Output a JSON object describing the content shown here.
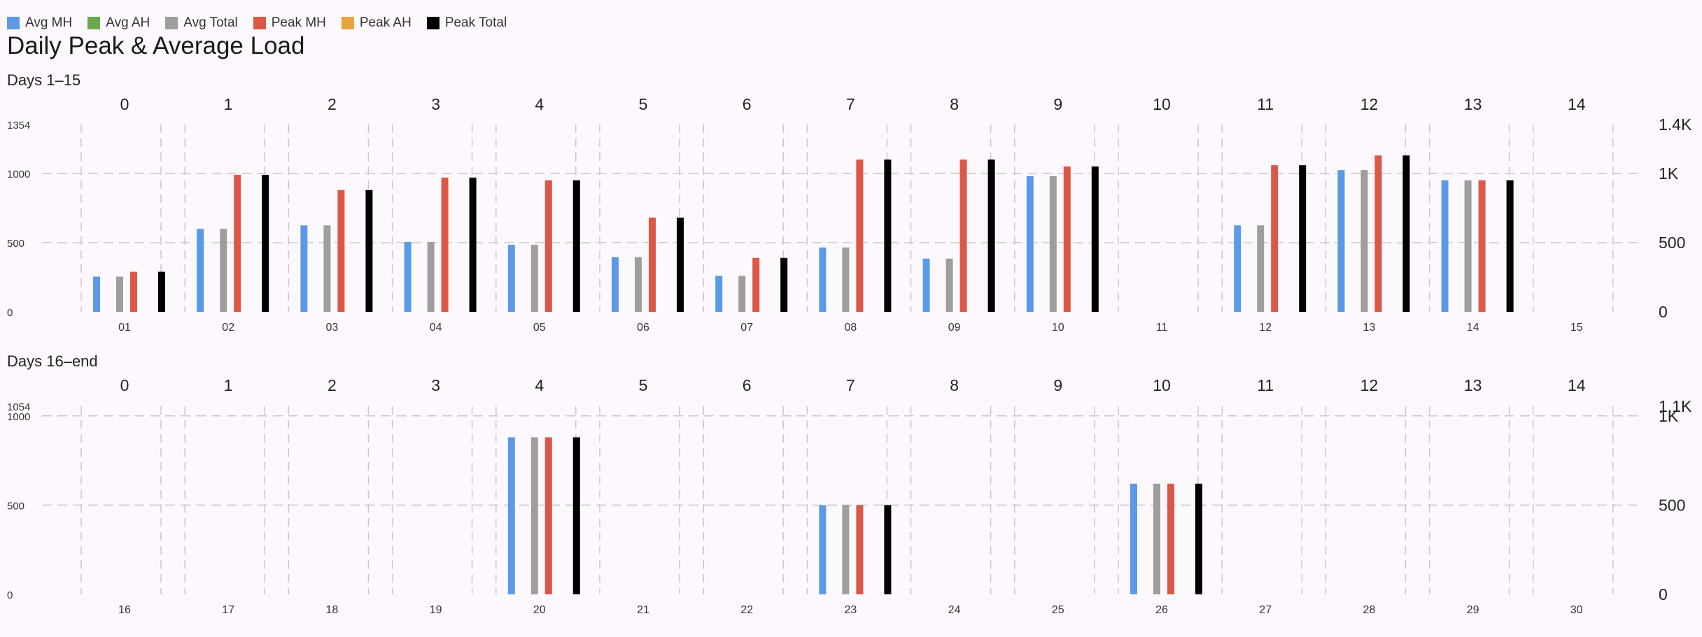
{
  "title": "Daily Peak & Average Load",
  "legend": [
    {
      "name": "Avg MH",
      "color": "#5a9ae6"
    },
    {
      "name": "Avg AH",
      "color": "#69a84f"
    },
    {
      "name": "Avg Total",
      "color": "#9e9e9e"
    },
    {
      "name": "Peak MH",
      "color": "#dc5845"
    },
    {
      "name": "Peak AH",
      "color": "#e8a33d"
    },
    {
      "name": "Peak Total",
      "color": "#000000"
    }
  ],
  "chart_data": [
    {
      "type": "bar",
      "title": "Days 1–15",
      "top_ticks": [
        "0",
        "1",
        "2",
        "3",
        "4",
        "5",
        "6",
        "7",
        "8",
        "9",
        "10",
        "11",
        "12",
        "13",
        "14"
      ],
      "categories": [
        "01",
        "02",
        "03",
        "04",
        "05",
        "06",
        "07",
        "08",
        "09",
        "10",
        "11",
        "12",
        "13",
        "14",
        "15"
      ],
      "left_ticks": [
        "0",
        "500",
        "1000",
        "1354"
      ],
      "right_ticks": [
        "0",
        "500",
        "1K",
        "1.4K"
      ],
      "ylim": [
        0,
        1354
      ],
      "series": [
        {
          "name": "Avg MH",
          "color": "#5a9ae6",
          "values": [
            255,
            600,
            625,
            505,
            485,
            395,
            260,
            465,
            385,
            980,
            0,
            625,
            1025,
            950,
            0
          ]
        },
        {
          "name": "Avg AH",
          "color": "#69a84f",
          "values": [
            0,
            0,
            0,
            0,
            0,
            0,
            0,
            0,
            0,
            0,
            0,
            0,
            0,
            0,
            0
          ]
        },
        {
          "name": "Avg Total",
          "color": "#9e9e9e",
          "values": [
            255,
            600,
            625,
            505,
            485,
            395,
            260,
            465,
            385,
            980,
            0,
            625,
            1025,
            950,
            0
          ]
        },
        {
          "name": "Peak MH",
          "color": "#dc5845",
          "values": [
            290,
            990,
            880,
            970,
            950,
            680,
            390,
            1100,
            1100,
            1050,
            0,
            1060,
            1130,
            950,
            0
          ]
        },
        {
          "name": "Peak AH",
          "color": "#e8a33d",
          "values": [
            0,
            0,
            0,
            0,
            0,
            0,
            0,
            0,
            0,
            0,
            0,
            0,
            0,
            0,
            0
          ]
        },
        {
          "name": "Peak Total",
          "color": "#000000",
          "values": [
            290,
            990,
            880,
            970,
            950,
            680,
            390,
            1100,
            1100,
            1050,
            0,
            1060,
            1130,
            950,
            0
          ]
        }
      ]
    },
    {
      "type": "bar",
      "title": "Days 16–end",
      "top_ticks": [
        "0",
        "1",
        "2",
        "3",
        "4",
        "5",
        "6",
        "7",
        "8",
        "9",
        "10",
        "11",
        "12",
        "13",
        "14"
      ],
      "categories": [
        "16",
        "17",
        "18",
        "19",
        "20",
        "21",
        "22",
        "23",
        "24",
        "25",
        "26",
        "27",
        "28",
        "29",
        "30"
      ],
      "left_ticks": [
        "0",
        "500",
        "1000",
        "1054"
      ],
      "right_ticks": [
        "0",
        "500",
        "1K",
        "1.1K"
      ],
      "ylim": [
        0,
        1054
      ],
      "series": [
        {
          "name": "Avg MH",
          "color": "#5a9ae6",
          "values": [
            0,
            0,
            0,
            0,
            880,
            0,
            0,
            500,
            0,
            0,
            620,
            0,
            0,
            0,
            0
          ]
        },
        {
          "name": "Avg AH",
          "color": "#69a84f",
          "values": [
            0,
            0,
            0,
            0,
            0,
            0,
            0,
            0,
            0,
            0,
            0,
            0,
            0,
            0,
            0
          ]
        },
        {
          "name": "Avg Total",
          "color": "#9e9e9e",
          "values": [
            0,
            0,
            0,
            0,
            880,
            0,
            0,
            500,
            0,
            0,
            620,
            0,
            0,
            0,
            0
          ]
        },
        {
          "name": "Peak MH",
          "color": "#dc5845",
          "values": [
            0,
            0,
            0,
            0,
            880,
            0,
            0,
            500,
            0,
            0,
            620,
            0,
            0,
            0,
            0
          ]
        },
        {
          "name": "Peak AH",
          "color": "#e8a33d",
          "values": [
            0,
            0,
            0,
            0,
            0,
            0,
            0,
            0,
            0,
            0,
            0,
            0,
            0,
            0,
            0
          ]
        },
        {
          "name": "Peak Total",
          "color": "#000000",
          "values": [
            0,
            0,
            0,
            0,
            880,
            0,
            0,
            500,
            0,
            0,
            620,
            0,
            0,
            0,
            0
          ]
        }
      ]
    }
  ]
}
